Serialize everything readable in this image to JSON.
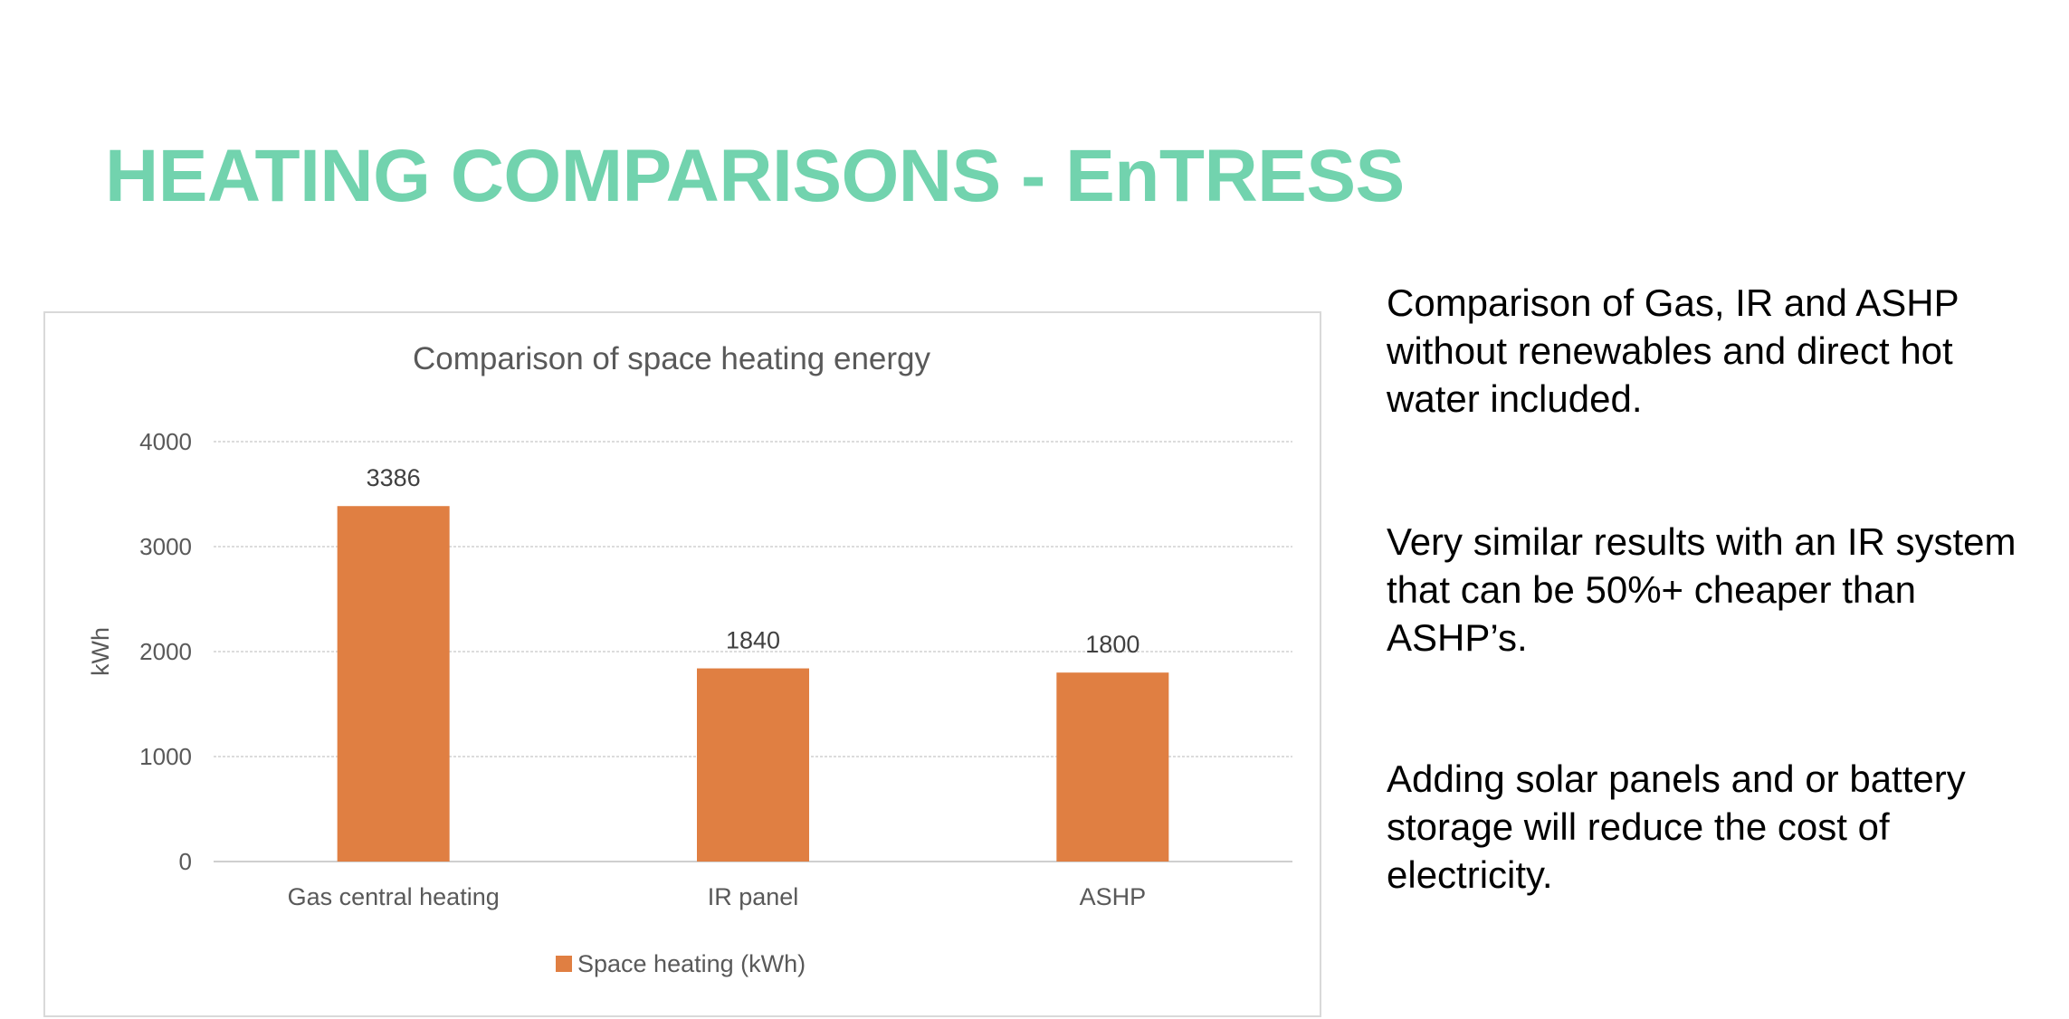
{
  "slide": {
    "title": "HEATING COMPARISONS - EnTRESS",
    "paragraphs": [
      "Comparison of Gas, IR and ASHP without renewables and direct hot water included.",
      "Very similar results with an IR system that can be 50%+ cheaper than ASHP’s.",
      "Adding solar panels and or battery storage will reduce the cost of electricity."
    ]
  },
  "chart_data": {
    "type": "bar",
    "title": "Comparison of space heating energy",
    "categories": [
      "Gas central heating",
      "IR panel",
      "ASHP"
    ],
    "series": [
      {
        "name": "Space heating (kWh)",
        "values": [
          3386,
          1840,
          1800
        ],
        "color": "#E07F42"
      }
    ],
    "xlabel": "",
    "ylabel": "kWh",
    "ylim": [
      0,
      4000
    ],
    "yticks": [
      0,
      1000,
      2000,
      3000,
      4000
    ],
    "data_labels": [
      "3386",
      "1840",
      "1800"
    ],
    "grid": true,
    "legend": "bottom"
  }
}
